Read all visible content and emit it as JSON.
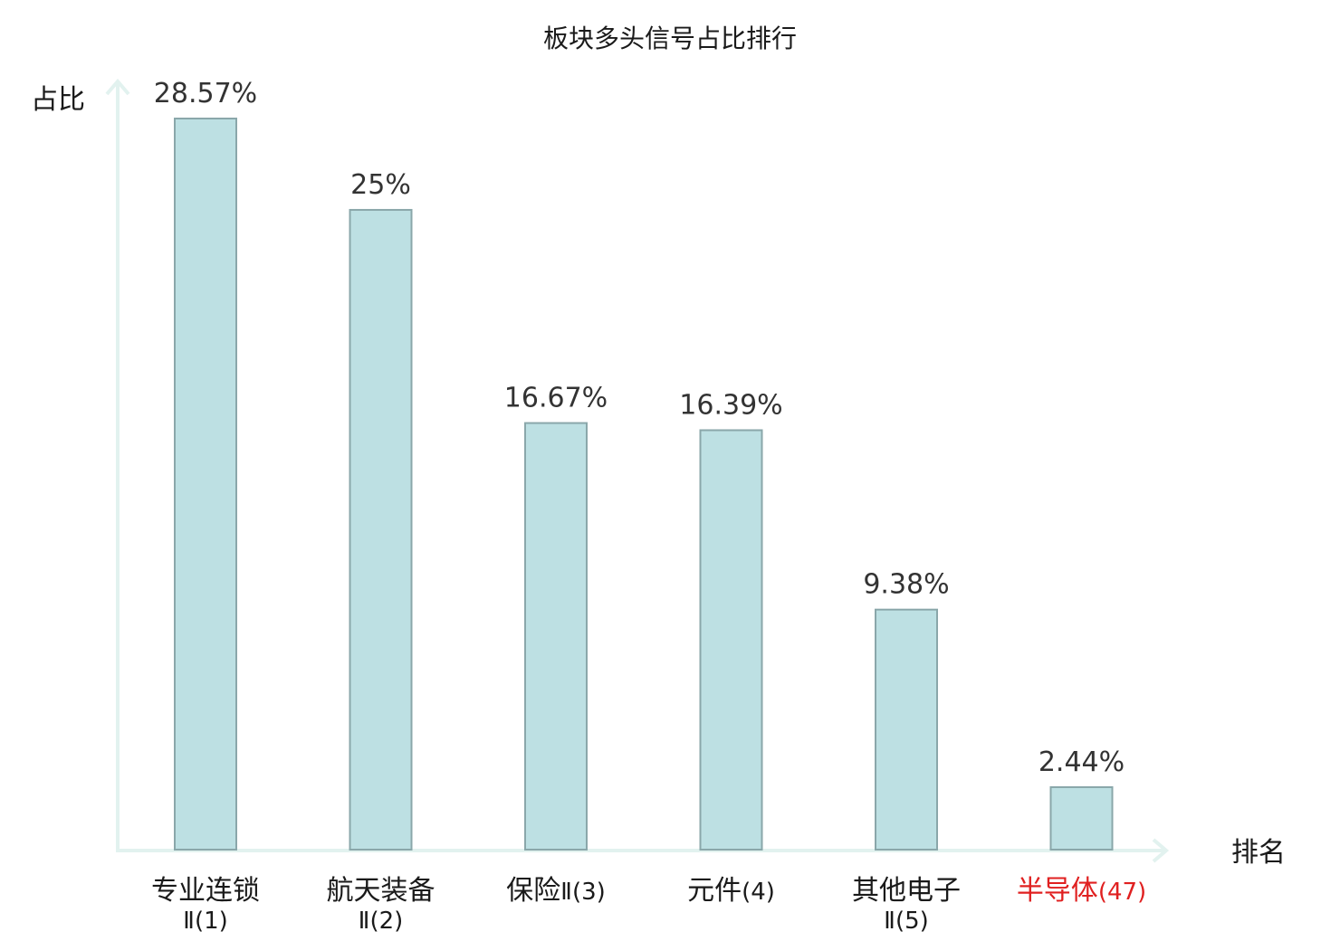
{
  "chart_data": {
    "type": "bar",
    "title": "板块多头信号占比排行",
    "ylabel": "占比",
    "xlabel": "排名",
    "ylim": [
      0,
      30
    ],
    "grid": false,
    "categories": [
      {
        "name": "专业连锁",
        "rank": "Ⅱ(1)",
        "highlight": false
      },
      {
        "name": "航天装备",
        "rank": "Ⅱ(2)",
        "highlight": false
      },
      {
        "name": "保险",
        "rank": "Ⅱ(3)",
        "highlight": false
      },
      {
        "name": "元件",
        "rank": "(4)",
        "highlight": false
      },
      {
        "name": "其他电子",
        "rank": "Ⅱ(5)",
        "highlight": false
      },
      {
        "name": "半导体",
        "rank": "(47)",
        "highlight": true
      }
    ],
    "values": [
      28.57,
      25,
      16.67,
      16.39,
      9.38,
      2.44
    ],
    "value_labels": [
      "28.57%",
      "25%",
      "16.67%",
      "16.39%",
      "9.38%",
      "2.44%"
    ],
    "colors": {
      "bar_fill": "#bde0e3",
      "bar_stroke": "#8aa7aa",
      "axis": "#e2f2ef",
      "text": "#1a1a1a",
      "value_text": "#333333",
      "highlight": "#e02020"
    }
  }
}
